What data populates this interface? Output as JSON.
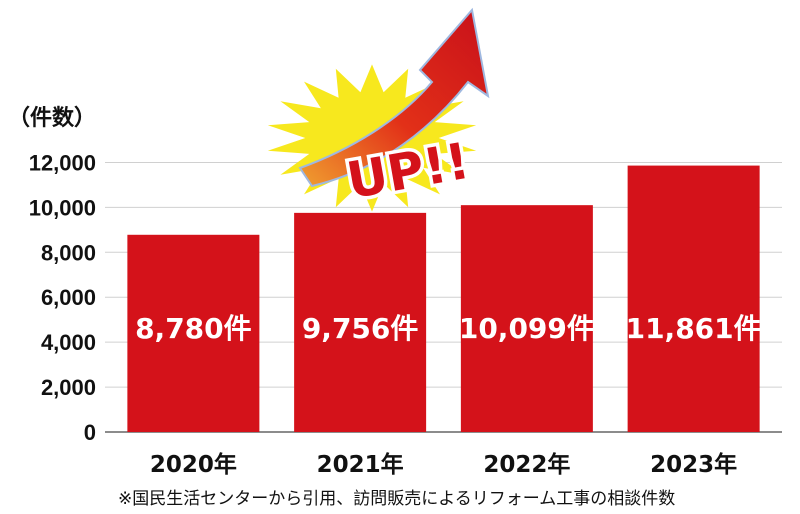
{
  "chart_data": {
    "type": "bar",
    "unit_label": "（件数）",
    "categories": [
      "2020年",
      "2021年",
      "2022年",
      "2023年"
    ],
    "values": [
      8780,
      9756,
      10099,
      11861
    ],
    "value_labels": [
      "8,780件",
      "9,756件",
      "10,099件",
      "11,861件"
    ],
    "yticks": [
      "0",
      "2,000",
      "4,000",
      "6,000",
      "8,000",
      "10,000",
      "12,000"
    ],
    "ylim": [
      0,
      13000
    ],
    "grid": true,
    "bar_color": "#d4121a",
    "annotation": "UP!!",
    "source_note": "※国民生活センターから引用、訪問販売によるリフォーム工事の相談件数"
  }
}
